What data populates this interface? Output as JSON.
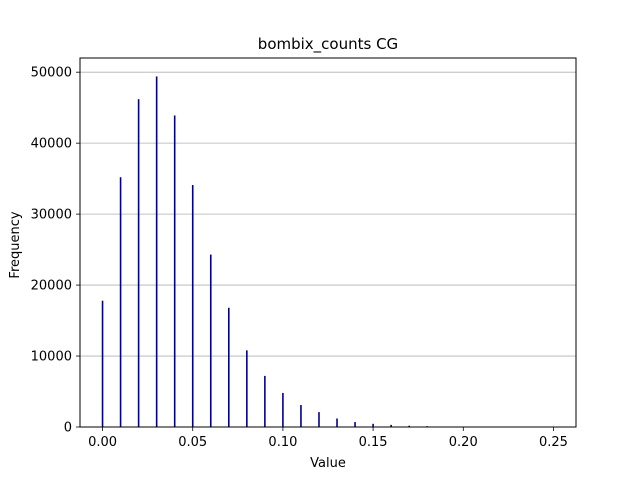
{
  "chart_data": {
    "type": "bar",
    "title": "bombix_counts CG",
    "xlabel": "Value",
    "ylabel": "Frequency",
    "xlim": [
      -0.0125,
      0.2625
    ],
    "ylim": [
      0,
      52000
    ],
    "x_ticks": [
      0.0,
      0.05,
      0.1,
      0.15,
      0.2,
      0.25
    ],
    "x_tick_labels": [
      "0.00",
      "0.05",
      "0.10",
      "0.15",
      "0.20",
      "0.25"
    ],
    "y_ticks": [
      0,
      10000,
      20000,
      30000,
      40000,
      50000
    ],
    "y_tick_labels": [
      "0",
      "10000",
      "20000",
      "30000",
      "40000",
      "50000"
    ],
    "grid": "y",
    "bar_color": "#00008b",
    "x": [
      0.0,
      0.01,
      0.02,
      0.03,
      0.04,
      0.05,
      0.06,
      0.07,
      0.08,
      0.09,
      0.1,
      0.11,
      0.12,
      0.13,
      0.14,
      0.15,
      0.16,
      0.17,
      0.18,
      0.19,
      0.2
    ],
    "values": [
      17800,
      35200,
      46200,
      49400,
      43900,
      34100,
      24300,
      16800,
      10800,
      7200,
      4800,
      3100,
      2100,
      1200,
      700,
      450,
      300,
      180,
      120,
      70,
      40
    ]
  }
}
